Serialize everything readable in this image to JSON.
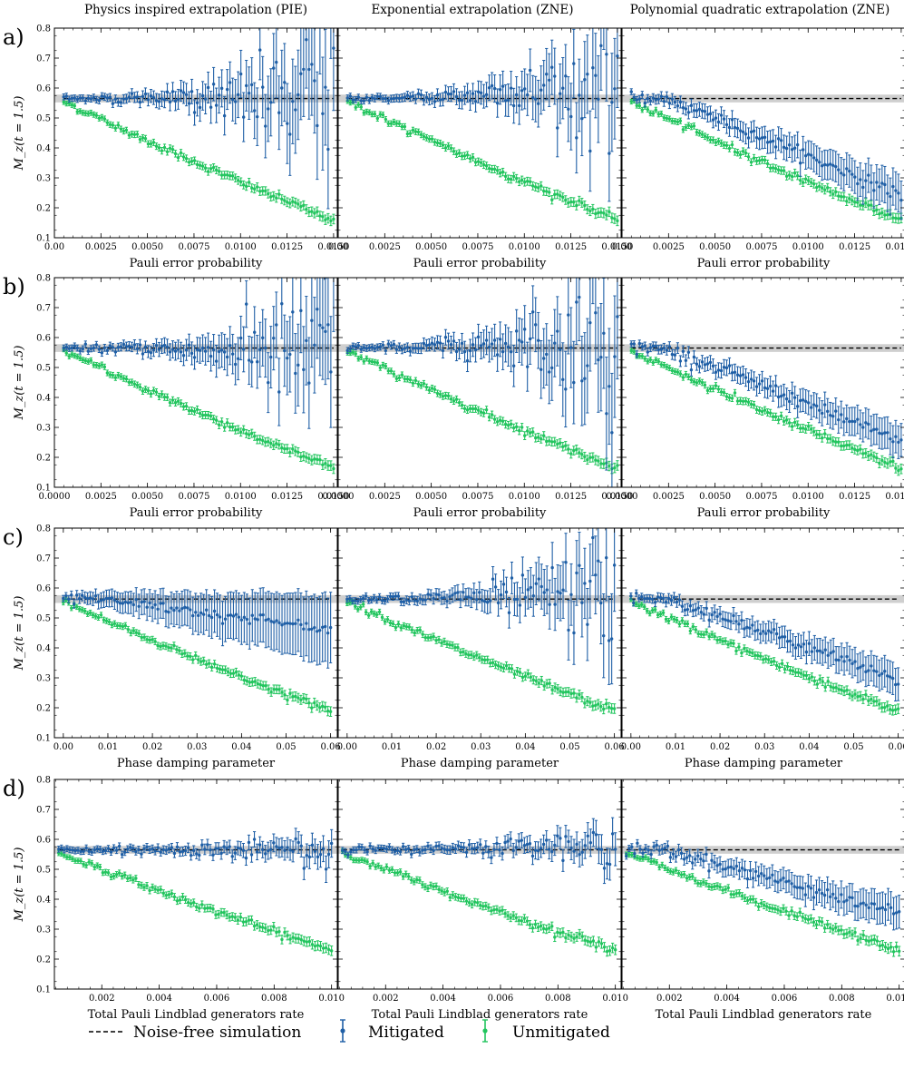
{
  "figure": {
    "column_titles": [
      "Physics inspired extrapolation (PIE)",
      "Exponential extrapolation (ZNE)",
      "Polynomial quadratic extrapolation (ZNE)"
    ],
    "row_labels": [
      "a)",
      "b)",
      "c)",
      "d)"
    ],
    "ylabel": "M_z(t = 1.5)",
    "legend": {
      "noise_free": "Noise-free simulation",
      "mitigated": "Mitigated",
      "unmitigated": "Unmitigated"
    },
    "colors": {
      "mitigated": "#1f5fa6",
      "unmitigated": "#22c55e",
      "noise_free": "#000000",
      "band": "#cfcfcf"
    }
  },
  "chart_data": [
    {
      "row": "a)",
      "xlabel": "Pauli error probability",
      "xlim": [
        0.0,
        0.0152
      ],
      "ylim": [
        0.1,
        0.8
      ],
      "xticks": [
        "0.00",
        "0.0025",
        "0.0050",
        "0.0075",
        "0.0100",
        "0.0125",
        "0.0150"
      ],
      "xtick_values": [
        0.0,
        0.0025,
        0.005,
        0.0075,
        0.01,
        0.0125,
        0.015
      ],
      "yticks": [
        "0.1",
        "0.2",
        "0.3",
        "0.4",
        "0.5",
        "0.6",
        "0.7",
        "0.8"
      ],
      "noise_free": 0.565,
      "noise_free_band": [
        0.552,
        0.578
      ],
      "x_start": 0.0005,
      "x_end": 0.015,
      "n_points": 100,
      "unmitigated_end": 0.16,
      "panels": [
        {
          "title": "Physics inspired extrapolation (PIE)",
          "mitigated_end": 0.565,
          "mitigated_drift": 0.0,
          "scatter_growth": 0.22
        },
        {
          "title": "Exponential extrapolation (ZNE)",
          "mitigated_end": 0.62,
          "mitigated_drift": 0.06,
          "scatter_growth": 0.18
        },
        {
          "title": "Polynomial quadratic extrapolation (ZNE)",
          "mitigated_end": 0.24,
          "mitigated_drift": 0.0,
          "scatter_growth": 0.06
        }
      ]
    },
    {
      "row": "b)",
      "xlabel": "Pauli error probability",
      "xlim": [
        0.0,
        0.0152
      ],
      "ylim": [
        0.1,
        0.8
      ],
      "xticks": [
        "0.0000",
        "0.0025",
        "0.0050",
        "0.0075",
        "0.0100",
        "0.0125",
        "0.0150"
      ],
      "xtick_values": [
        0.0,
        0.0025,
        0.005,
        0.0075,
        0.01,
        0.0125,
        0.015
      ],
      "yticks": [
        "0.1",
        "0.2",
        "0.3",
        "0.4",
        "0.5",
        "0.6",
        "0.7",
        "0.8"
      ],
      "noise_free": 0.565,
      "noise_free_band": [
        0.552,
        0.578
      ],
      "x_start": 0.0005,
      "x_end": 0.015,
      "n_points": 100,
      "unmitigated_end": 0.165,
      "panels": [
        {
          "title": "Physics inspired extrapolation (PIE)",
          "mitigated_end": 0.55,
          "mitigated_drift": -0.03,
          "scatter_growth": 0.2
        },
        {
          "title": "Exponential extrapolation (ZNE)",
          "mitigated_end": 0.6,
          "mitigated_drift": 0.03,
          "scatter_growth": 0.22
        },
        {
          "title": "Polynomial quadratic extrapolation (ZNE)",
          "mitigated_end": 0.25,
          "mitigated_drift": 0.0,
          "scatter_growth": 0.05
        }
      ]
    },
    {
      "row": "c)",
      "xlabel": "Phase damping parameter",
      "xlim": [
        -0.002,
        0.0615
      ],
      "ylim": [
        0.1,
        0.8
      ],
      "xticks": [
        "0.00",
        "0.01",
        "0.02",
        "0.03",
        "0.04",
        "0.05",
        "0.06"
      ],
      "xtick_values": [
        0.0,
        0.01,
        0.02,
        0.03,
        0.04,
        0.05,
        0.06
      ],
      "yticks": [
        "0.1",
        "0.2",
        "0.3",
        "0.4",
        "0.5",
        "0.6",
        "0.7",
        "0.8"
      ],
      "noise_free": 0.563,
      "noise_free_band": [
        0.55,
        0.576
      ],
      "x_start": 0.0,
      "x_end": 0.06,
      "n_points": 100,
      "unmitigated_end": 0.19,
      "panels": [
        {
          "title": "Physics inspired extrapolation (PIE)",
          "mitigated_end": 0.46,
          "mitigated_drift": -0.06,
          "scatter_growth": 0.12
        },
        {
          "title": "Exponential extrapolation (ZNE)",
          "mitigated_end": 0.6,
          "mitigated_drift": 0.03,
          "scatter_growth": 0.16
        },
        {
          "title": "Polynomial quadratic extrapolation (ZNE)",
          "mitigated_end": 0.29,
          "mitigated_drift": 0.0,
          "scatter_growth": 0.05
        }
      ]
    },
    {
      "row": "d)",
      "xlabel": "Total Pauli Lindblad generators rate",
      "xlim": [
        0.00035,
        0.0102
      ],
      "ylim": [
        0.1,
        0.8
      ],
      "xticks": [
        "0.002",
        "0.004",
        "0.006",
        "0.008",
        "0.010"
      ],
      "xtick_values": [
        0.002,
        0.004,
        0.006,
        0.008,
        0.01
      ],
      "yticks": [
        "0.1",
        "0.2",
        "0.3",
        "0.4",
        "0.5",
        "0.6",
        "0.7",
        "0.8"
      ],
      "noise_free": 0.565,
      "noise_free_band": [
        0.552,
        0.578
      ],
      "x_start": 0.0005,
      "x_end": 0.01,
      "n_points": 100,
      "unmitigated_end": 0.23,
      "panels": [
        {
          "title": "Physics inspired extrapolation (PIE)",
          "mitigated_end": 0.58,
          "mitigated_drift": 0.0,
          "scatter_growth": 0.04
        },
        {
          "title": "Exponential extrapolation (ZNE)",
          "mitigated_end": 0.6,
          "mitigated_drift": 0.02,
          "scatter_growth": 0.05
        },
        {
          "title": "Polynomial quadratic extrapolation (ZNE)",
          "mitigated_end": 0.35,
          "mitigated_drift": 0.0,
          "scatter_growth": 0.05
        }
      ]
    }
  ]
}
